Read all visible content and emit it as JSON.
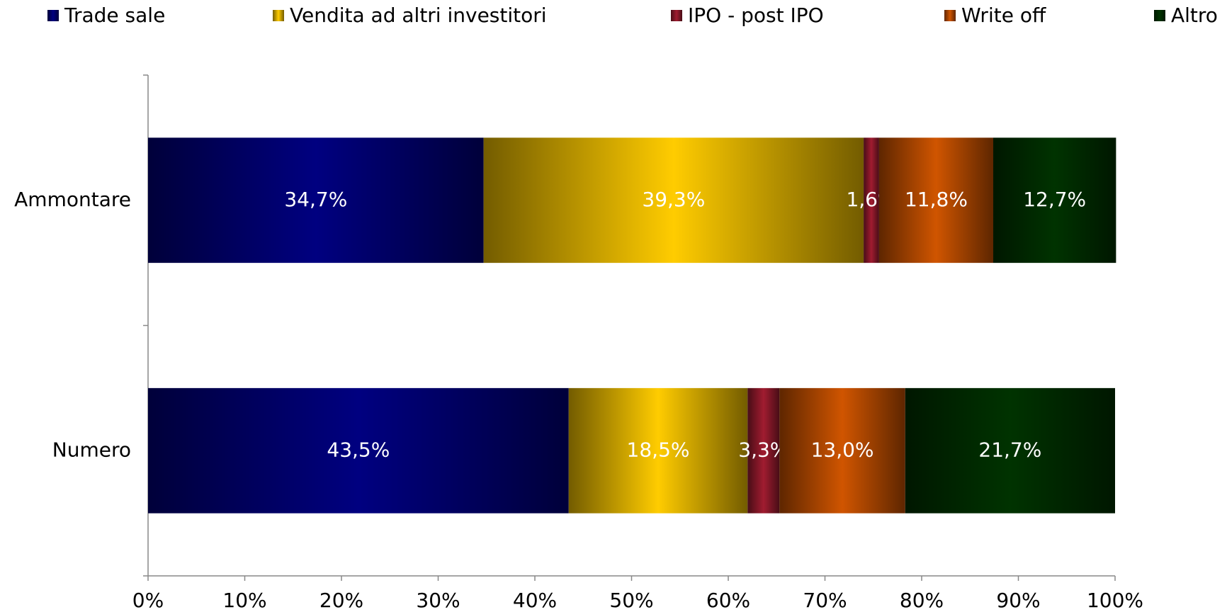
{
  "chart_data": {
    "type": "stacked_barh",
    "categories": [
      "Ammontare",
      "Numero"
    ],
    "series": [
      {
        "name": "Trade sale",
        "color": "#000080",
        "values": [
          34.7,
          43.5
        ],
        "value_labels": [
          "34,7%",
          "43,5%"
        ]
      },
      {
        "name": "Vendita ad altri investitori",
        "color": "#ffcc00",
        "values": [
          39.3,
          18.5
        ],
        "value_labels": [
          "39,3%",
          "18,5%"
        ]
      },
      {
        "name": "IPO - post IPO",
        "color": "#a01c30",
        "values": [
          1.6,
          3.3
        ],
        "value_labels": [
          "1,6%",
          "3,3%"
        ]
      },
      {
        "name": "Write off",
        "color": "#d05500",
        "values": [
          11.8,
          13.0
        ],
        "value_labels": [
          "11,8%",
          "13,0%"
        ]
      },
      {
        "name": "Altro",
        "color": "#003300",
        "values": [
          12.7,
          21.7
        ],
        "value_labels": [
          "12,7%",
          "21,7%"
        ]
      }
    ],
    "xlim": [
      0,
      100
    ],
    "xticks": [
      {
        "value": 0,
        "label": "0%"
      },
      {
        "value": 10,
        "label": "10%"
      },
      {
        "value": 20,
        "label": "20%"
      },
      {
        "value": 30,
        "label": "30%"
      },
      {
        "value": 40,
        "label": "40%"
      },
      {
        "value": 50,
        "label": "50%"
      },
      {
        "value": 60,
        "label": "60%"
      },
      {
        "value": 70,
        "label": "70%"
      },
      {
        "value": 80,
        "label": "80%"
      },
      {
        "value": 90,
        "label": "90%"
      },
      {
        "value": 100,
        "label": "100%"
      }
    ],
    "legend": "top"
  }
}
